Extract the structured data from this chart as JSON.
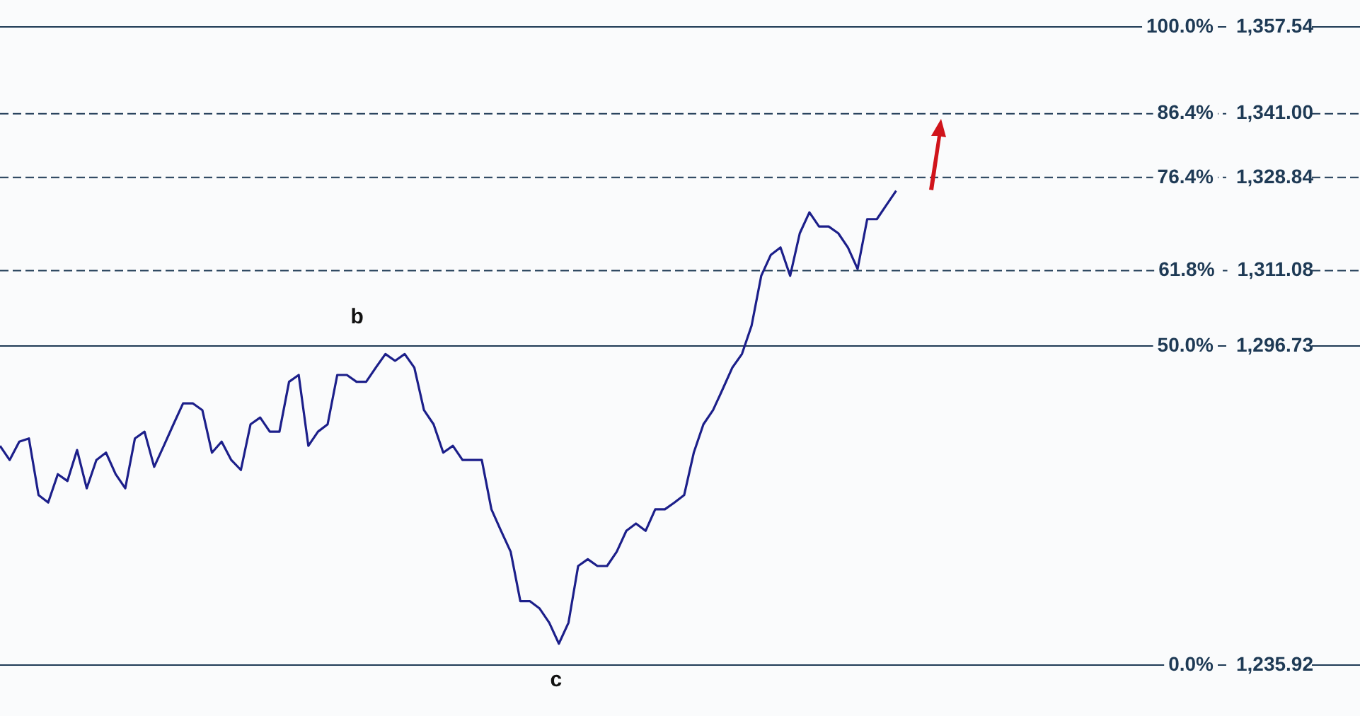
{
  "chart_data": {
    "type": "line",
    "relative": false,
    "categories": [
      null,
      null,
      null,
      null,
      null,
      null,
      null,
      null,
      null,
      null,
      null,
      null,
      null,
      null,
      null,
      null,
      null,
      null,
      null,
      null,
      null,
      null,
      null,
      null,
      null,
      null,
      null,
      null,
      null,
      null,
      null,
      null,
      null,
      null,
      null,
      null,
      null,
      null,
      null,
      null,
      null,
      null,
      null,
      null,
      null,
      null,
      null,
      null,
      null,
      null,
      null,
      null,
      null,
      null,
      null,
      null,
      null,
      null,
      null,
      null,
      null,
      null,
      null,
      null,
      null,
      null,
      null,
      null,
      null,
      null,
      null,
      null,
      null,
      null,
      null,
      null,
      null,
      null,
      null,
      null,
      null,
      null,
      null,
      null,
      null,
      null,
      null,
      null,
      null,
      null,
      null,
      null,
      null,
      null,
      null,
      null,
      null,
      null,
      null,
      null,
      null,
      null,
      null,
      null,
      null,
      null,
      null,
      null,
      null,
      null,
      null,
      null,
      null,
      null,
      null,
      null,
      null,
      null,
      null,
      null,
      null,
      null,
      null,
      null,
      null,
      null,
      null,
      null,
      null,
      null,
      null,
      null,
      null,
      null,
      null,
      null,
      null
    ],
    "series": [
      {
        "color": "#1c1f8a",
        "values": [
          1277.7,
          1275.0,
          1278.5,
          1279.1,
          1268.3,
          1266.9,
          1272.3,
          1271.0,
          1276.9,
          1269.6,
          1275.0,
          1276.4,
          1272.3,
          1269.6,
          1279.1,
          1280.4,
          1273.7,
          1277.7,
          1281.8,
          1285.8,
          1285.8,
          1284.5,
          1276.4,
          1278.5,
          1275.0,
          1273.1,
          1281.8,
          1283.1,
          1280.4,
          1280.4,
          1289.9,
          1291.2,
          1277.7,
          1280.4,
          1281.8,
          1291.2,
          1291.2,
          1289.9,
          1289.9,
          1292.6,
          1295.2,
          1293.9,
          1295.2,
          1292.6,
          1284.5,
          1281.8,
          1276.4,
          1277.7,
          1275.0,
          1275.0,
          1275.0,
          1265.6,
          1261.5,
          1257.5,
          1248.1,
          1248.1,
          1246.7,
          1244.0,
          1240.0,
          1244.0,
          1254.8,
          1256.1,
          1254.8,
          1254.8,
          1257.5,
          1261.5,
          1262.9,
          1261.5,
          1265.6,
          1265.6,
          1266.9,
          1268.3,
          1276.4,
          1281.8,
          1284.5,
          1288.5,
          1292.6,
          1295.2,
          1300.6,
          1310.1,
          1314.1,
          1315.5,
          1310.1,
          1318.2,
          1322.2,
          1319.5,
          1319.5,
          1318.2,
          1315.5,
          1311.4,
          1320.9,
          1320.9,
          1323.6,
          1326.3,
          null,
          null,
          null,
          null,
          null,
          null,
          null,
          null,
          null,
          null,
          null,
          null,
          null,
          null,
          null,
          null,
          null,
          null,
          null,
          null,
          null,
          null,
          null,
          null,
          null,
          null,
          null,
          null,
          null,
          null,
          null,
          null,
          null,
          null,
          null,
          null,
          null,
          null,
          null,
          null,
          null,
          null,
          null
        ]
      }
    ],
    "ylim": [
      1235.92,
      1357.54
    ],
    "tick_labels": "y",
    "legend": false,
    "yticks": [
      {
        "value": 1235.92,
        "label": "1,235.92"
      },
      {
        "value": 1296.73,
        "label": "1,296.73"
      },
      {
        "value": 1311.08,
        "label": "1,311.08"
      },
      {
        "value": 1328.84,
        "label": "1,328.84"
      },
      {
        "value": 1341.0,
        "label": "1,341.00"
      },
      {
        "value": 1357.54,
        "label": "1,357.54"
      }
    ],
    "marker": "none",
    "line_style": "solid",
    "ref_lines": [
      {
        "axis": "y",
        "value": 1357.54,
        "color": "#1e3a55",
        "line_style": "solid"
      },
      {
        "axis": "y",
        "value": 1341.0,
        "color": "#1e3a55",
        "line_style": "dashed"
      },
      {
        "axis": "y",
        "value": 1328.84,
        "color": "#1e3a55",
        "line_style": "dashed"
      },
      {
        "axis": "y",
        "value": 1311.08,
        "color": "#1e3a55",
        "line_style": "dashed"
      },
      {
        "axis": "y",
        "value": 1296.73,
        "color": "#1e3a55",
        "line_style": "solid"
      },
      {
        "axis": "y",
        "value": 1235.92,
        "color": "#1e3a55",
        "line_style": "solid"
      }
    ],
    "annotations": [
      "b",
      "c",
      {
        "text": "100.0%",
        "y": 1357.54
      },
      {
        "text": "86.4%",
        "y": 1341.0
      },
      {
        "text": "76.4%",
        "y": 1328.84
      },
      {
        "text": "61.8%",
        "y": 1311.08
      },
      {
        "text": "50.0%",
        "y": 1296.73
      },
      {
        "text": "0.0%",
        "y": 1235.92
      }
    ]
  }
}
